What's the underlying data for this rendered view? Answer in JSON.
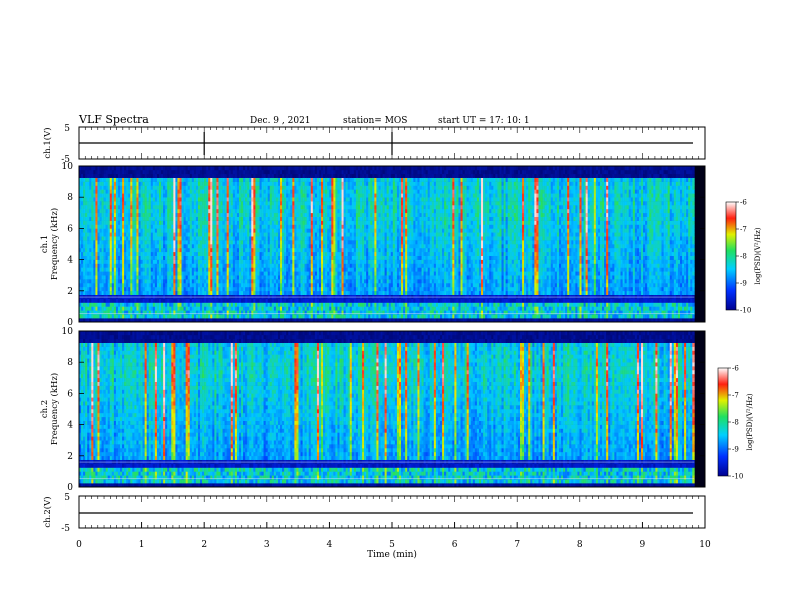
{
  "header": {
    "title": "VLF Spectra",
    "date": "Dec. 9 , 2021",
    "station": "station= MOS",
    "start": "start UT =  17: 10: 1"
  },
  "chart_data": [
    {
      "type": "line",
      "name_key": "waveform-ch1",
      "ylabel": "ch.1(V)",
      "ylim": [
        -5,
        5
      ],
      "yticks": [
        "5",
        "-5"
      ],
      "xlim": [
        0,
        10
      ]
    },
    {
      "type": "heatmap",
      "ylabel_top": "ch.1",
      "ylabel": "Frequency (kHz)",
      "ylim": [
        0,
        10
      ],
      "yticks": [
        "0",
        "2",
        "4",
        "6",
        "8",
        "10"
      ],
      "xlim": [
        0,
        10
      ],
      "colorbar": {
        "label": "log(PSD)(V²/Hz)",
        "range": [
          -10,
          -6
        ],
        "ticks": [
          "-6",
          "-7",
          "-8",
          "-9",
          "-10"
        ]
      }
    },
    {
      "type": "heatmap",
      "ylabel_top": "ch.2",
      "ylabel": "Frequency (kHz)",
      "ylim": [
        0,
        10
      ],
      "yticks": [
        "0",
        "2",
        "4",
        "6",
        "8",
        "10"
      ],
      "xlim": [
        0,
        10
      ],
      "colorbar": {
        "label": "log(PSD)(V²/Hz)",
        "range": [
          -10,
          -6
        ],
        "ticks": [
          "-6",
          "-7",
          "-8",
          "-9",
          "-10"
        ]
      }
    },
    {
      "type": "line",
      "ylabel": "ch.2(V)",
      "ylim": [
        -5,
        5
      ],
      "yticks": [
        "5",
        "-5"
      ],
      "xlim": [
        0,
        10
      ],
      "xlabel": "Time (min)",
      "xticks": [
        "0",
        "1",
        "2",
        "3",
        "4",
        "5",
        "6",
        "7",
        "8",
        "9",
        "10"
      ]
    }
  ],
  "colors": {
    "background_band": "#06063a",
    "low": "#0000c8",
    "mid": "#22dd66",
    "high": "#ff1010"
  }
}
